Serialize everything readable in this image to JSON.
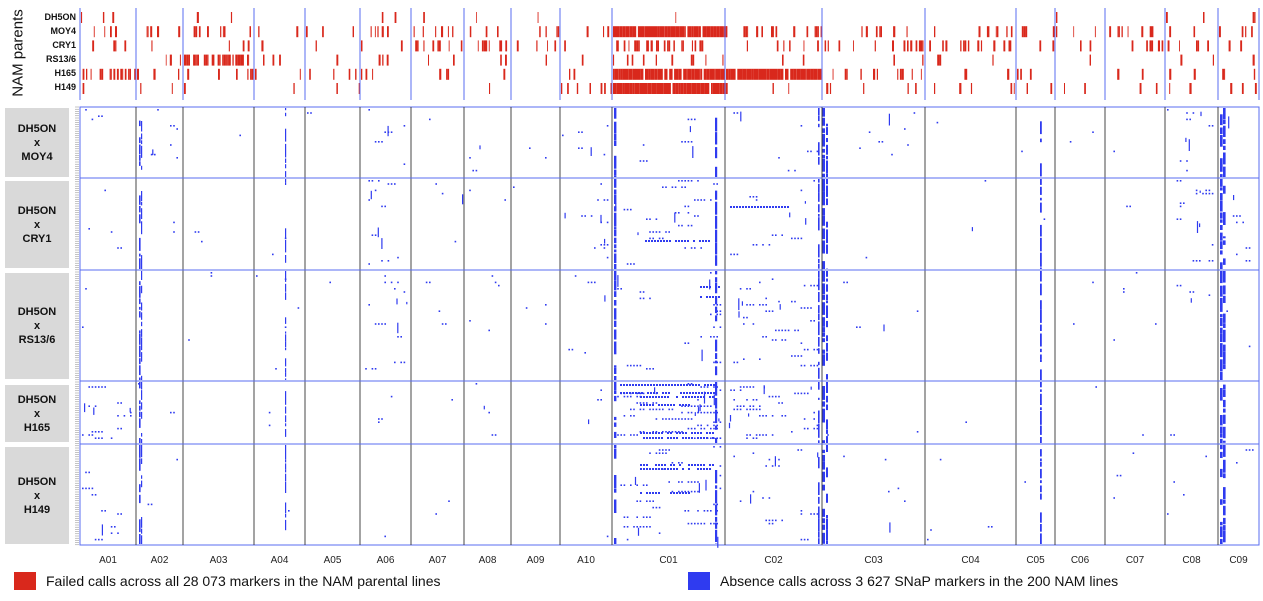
{
  "figure": {
    "top_axis_label": "NAM parents",
    "parents": [
      "DH5ON",
      "MOY4",
      "CRY1",
      "RS13/6",
      "H165",
      "H149"
    ],
    "crosses": [
      {
        "line1": "DH5ON",
        "line2": "x",
        "line3": "MOY4"
      },
      {
        "line1": "DH5ON",
        "line2": "x",
        "line3": "CRY1"
      },
      {
        "line1": "DH5ON",
        "line2": "x",
        "line3": "RS13/6"
      },
      {
        "line1": "DH5ON",
        "line2": "x",
        "line3": "H165"
      },
      {
        "line1": "DH5ON",
        "line2": "x",
        "line3": "H149"
      }
    ],
    "legend": [
      {
        "label": "Failed calls across all 28 073 markers in the NAM parental lines",
        "color": "#d9281c"
      },
      {
        "label": "Absence calls across 3 627 SNaP markers in the 200 NAM lines",
        "color": "#2f3bf0"
      }
    ]
  },
  "chart_data": {
    "type": "heatmap",
    "title": "",
    "xlabel": "",
    "ylabel": "NAM parents",
    "chromosomes": [
      "A01",
      "A02",
      "A03",
      "A04",
      "A05",
      "A06",
      "A07",
      "A08",
      "A09",
      "A10",
      "C01",
      "C02",
      "C03",
      "C04",
      "C05",
      "C06",
      "C07",
      "C08",
      "C09"
    ],
    "parental_rows": [
      "DH5ON",
      "MOY4",
      "CRY1",
      "RS13/6",
      "H165",
      "H149"
    ],
    "population_blocks": [
      "DH5ON x MOY4",
      "DH5ON x CRY1",
      "DH5ON x RS13/6",
      "DH5ON x H165",
      "DH5ON x H149"
    ],
    "series": [
      {
        "name": "Failed calls across all 28 073 markers in the NAM parental lines",
        "color": "#d9281c",
        "markers": 28073
      },
      {
        "name": "Absence calls across 3 627 SNaP markers in the 200 NAM lines",
        "color": "#2f3bf0",
        "markers": 3627,
        "lines": 200
      }
    ],
    "colors": {
      "failed": "#d9281c",
      "absence": "#2f3bf0",
      "grid_blue": "#5a6cf0",
      "chrom_border": "#333333"
    }
  }
}
